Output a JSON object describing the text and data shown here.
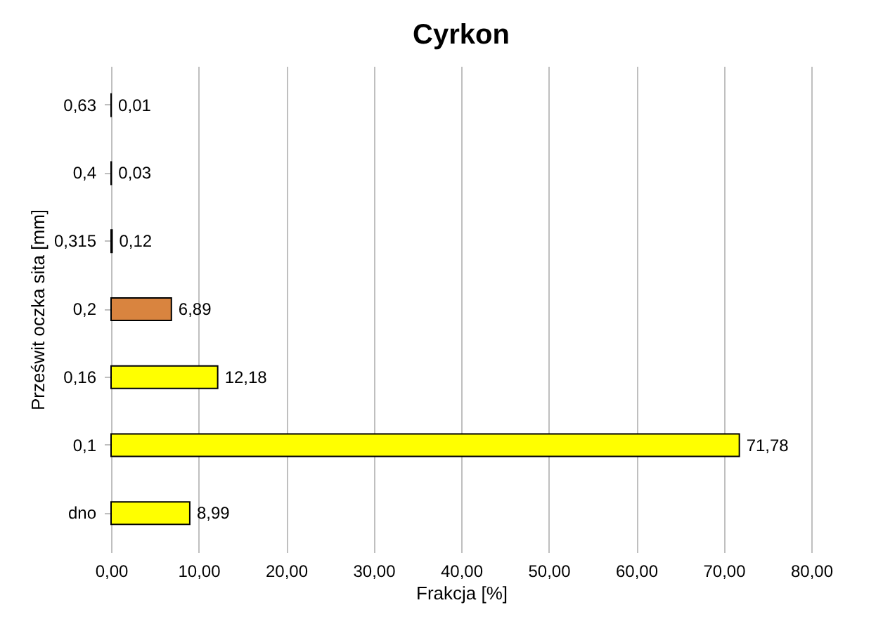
{
  "chart_data": {
    "type": "bar",
    "orientation": "horizontal",
    "title": "Cyrkon",
    "xlabel": "Frakcja [%]",
    "ylabel": "Prześwit oczka sita [mm]",
    "categories": [
      "0,63",
      "0,4",
      "0,315",
      "0,2",
      "0,16",
      "0,1",
      "dno"
    ],
    "values": [
      0.01,
      0.03,
      0.12,
      6.89,
      12.18,
      71.78,
      8.99
    ],
    "colors": [
      "#ffff00",
      "#ffff00",
      "#ffff00",
      "#d9843f",
      "#ffff00",
      "#ffff00",
      "#ffff00"
    ],
    "value_labels": [
      "0,01",
      "0,03",
      "0,12",
      "6,89",
      "12,18",
      "71,78",
      "8,99"
    ],
    "xlim": [
      0,
      80
    ],
    "xticks": [
      {
        "value": 0,
        "label": "0,00"
      },
      {
        "value": 10,
        "label": "10,00"
      },
      {
        "value": 20,
        "label": "20,00"
      },
      {
        "value": 30,
        "label": "30,00"
      },
      {
        "value": 40,
        "label": "40,00"
      },
      {
        "value": 50,
        "label": "50,00"
      },
      {
        "value": 60,
        "label": "60,00"
      },
      {
        "value": 70,
        "label": "70,00"
      },
      {
        "value": 80,
        "label": "80,00"
      }
    ],
    "grid": "x"
  }
}
